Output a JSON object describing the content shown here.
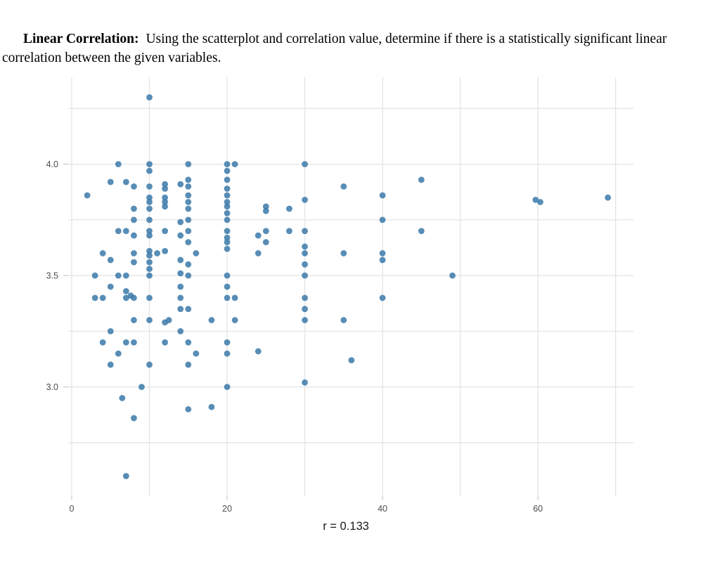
{
  "header": {
    "bold_label": "Linear Correlation:",
    "text": "Using the scatterplot and correlation value, determine if there is a statistically significant linear correlation between the given variables."
  },
  "chart_data": {
    "type": "scatter",
    "title": "",
    "xlabel": "r = 0.133",
    "ylabel": "",
    "correlation_r": 0.133,
    "xlim": [
      -0.45,
      72.3
    ],
    "ylim": [
      2.51,
      4.39
    ],
    "x_gridlines": [
      0,
      10,
      20,
      30,
      40,
      50,
      60,
      70
    ],
    "y_gridlines": [
      2.75,
      3.0,
      3.25,
      3.5,
      3.75,
      4.0,
      4.25
    ],
    "x_tick_values": [
      0,
      20,
      40,
      60
    ],
    "x_tick_labels": [
      "0",
      "20",
      "40",
      "60"
    ],
    "y_tick_values": [
      3.0,
      3.5,
      4.0
    ],
    "y_tick_labels": [
      "3.0",
      "3.5",
      "4.0"
    ],
    "grid": true,
    "legend": "none",
    "point_color": "#3e7cab",
    "point_opacity": 0.87,
    "grid_color": "#e4e4e4",
    "tick_label_color": "#4d4d4d",
    "axis_title_color": "#1a1a1a",
    "points": [
      [
        2,
        3.86
      ],
      [
        3,
        3.5
      ],
      [
        3,
        3.4
      ],
      [
        4,
        3.6
      ],
      [
        4,
        3.4
      ],
      [
        4,
        3.2
      ],
      [
        5,
        3.92
      ],
      [
        5,
        3.57
      ],
      [
        5,
        3.45
      ],
      [
        5,
        3.25
      ],
      [
        5,
        3.1
      ],
      [
        6,
        4.0
      ],
      [
        6,
        3.7
      ],
      [
        6,
        3.5
      ],
      [
        6,
        3.15
      ],
      [
        6.5,
        2.95
      ],
      [
        7,
        3.92
      ],
      [
        7,
        3.7
      ],
      [
        7,
        3.5
      ],
      [
        7,
        3.43
      ],
      [
        7,
        3.4
      ],
      [
        7,
        3.2
      ],
      [
        7,
        2.6
      ],
      [
        7.6,
        3.41
      ],
      [
        8,
        3.9
      ],
      [
        8,
        3.8
      ],
      [
        8,
        3.75
      ],
      [
        8,
        3.68
      ],
      [
        8,
        3.6
      ],
      [
        8,
        3.56
      ],
      [
        8,
        3.4
      ],
      [
        8,
        3.3
      ],
      [
        8,
        3.2
      ],
      [
        8,
        2.86
      ],
      [
        9,
        3.0
      ],
      [
        10,
        4.3
      ],
      [
        10,
        4.0
      ],
      [
        10,
        3.97
      ],
      [
        10,
        3.9
      ],
      [
        10,
        3.85
      ],
      [
        10,
        3.83
      ],
      [
        10,
        3.8
      ],
      [
        10,
        3.75
      ],
      [
        10,
        3.7
      ],
      [
        10,
        3.68
      ],
      [
        10,
        3.61
      ],
      [
        10,
        3.59
      ],
      [
        10,
        3.56
      ],
      [
        10,
        3.53
      ],
      [
        10,
        3.5
      ],
      [
        10,
        3.4
      ],
      [
        10,
        3.3
      ],
      [
        10,
        3.1
      ],
      [
        11,
        3.6
      ],
      [
        12,
        3.91
      ],
      [
        12,
        3.89
      ],
      [
        12,
        3.85
      ],
      [
        12,
        3.83
      ],
      [
        12,
        3.81
      ],
      [
        12,
        3.7
      ],
      [
        12,
        3.61
      ],
      [
        12,
        3.29
      ],
      [
        12,
        3.2
      ],
      [
        12.5,
        3.3
      ],
      [
        14,
        3.91
      ],
      [
        14,
        3.74
      ],
      [
        14,
        3.68
      ],
      [
        14,
        3.57
      ],
      [
        14,
        3.51
      ],
      [
        14,
        3.45
      ],
      [
        14,
        3.4
      ],
      [
        14,
        3.35
      ],
      [
        14,
        3.25
      ],
      [
        15,
        4.0
      ],
      [
        15,
        3.93
      ],
      [
        15,
        3.9
      ],
      [
        15,
        3.86
      ],
      [
        15,
        3.83
      ],
      [
        15,
        3.8
      ],
      [
        15,
        3.75
      ],
      [
        15,
        3.7
      ],
      [
        15,
        3.65
      ],
      [
        15,
        3.55
      ],
      [
        15,
        3.5
      ],
      [
        15,
        3.35
      ],
      [
        15,
        3.2
      ],
      [
        15,
        3.1
      ],
      [
        15,
        2.9
      ],
      [
        16,
        3.6
      ],
      [
        16,
        3.15
      ],
      [
        18,
        3.3
      ],
      [
        18,
        2.91
      ],
      [
        20,
        4.0
      ],
      [
        20,
        3.97
      ],
      [
        20,
        3.93
      ],
      [
        20,
        3.89
      ],
      [
        20,
        3.86
      ],
      [
        20,
        3.83
      ],
      [
        20,
        3.81
      ],
      [
        20,
        3.78
      ],
      [
        20,
        3.75
      ],
      [
        20,
        3.7
      ],
      [
        20,
        3.67
      ],
      [
        20,
        3.65
      ],
      [
        20,
        3.62
      ],
      [
        20,
        3.5
      ],
      [
        20,
        3.45
      ],
      [
        20,
        3.4
      ],
      [
        20,
        3.2
      ],
      [
        20,
        3.15
      ],
      [
        20,
        3.0
      ],
      [
        21,
        4.0
      ],
      [
        21,
        3.4
      ],
      [
        21,
        3.3
      ],
      [
        24,
        3.68
      ],
      [
        24,
        3.6
      ],
      [
        24,
        3.16
      ],
      [
        25,
        3.81
      ],
      [
        25,
        3.79
      ],
      [
        25,
        3.7
      ],
      [
        25,
        3.65
      ],
      [
        28,
        3.8
      ],
      [
        28,
        3.7
      ],
      [
        30,
        4.0
      ],
      [
        30,
        3.84
      ],
      [
        30,
        3.7
      ],
      [
        30,
        3.63
      ],
      [
        30,
        3.6
      ],
      [
        30,
        3.55
      ],
      [
        30,
        3.5
      ],
      [
        30,
        3.4
      ],
      [
        30,
        3.35
      ],
      [
        30,
        3.3
      ],
      [
        30,
        3.02
      ],
      [
        35,
        3.9
      ],
      [
        35,
        3.6
      ],
      [
        35,
        3.3
      ],
      [
        36,
        3.12
      ],
      [
        40,
        3.86
      ],
      [
        40,
        3.75
      ],
      [
        40,
        3.6
      ],
      [
        40,
        3.57
      ],
      [
        40,
        3.4
      ],
      [
        45,
        3.93
      ],
      [
        45,
        3.7
      ],
      [
        49,
        3.5
      ],
      [
        59.7,
        3.84
      ],
      [
        60.3,
        3.83
      ],
      [
        69,
        3.85
      ]
    ]
  }
}
